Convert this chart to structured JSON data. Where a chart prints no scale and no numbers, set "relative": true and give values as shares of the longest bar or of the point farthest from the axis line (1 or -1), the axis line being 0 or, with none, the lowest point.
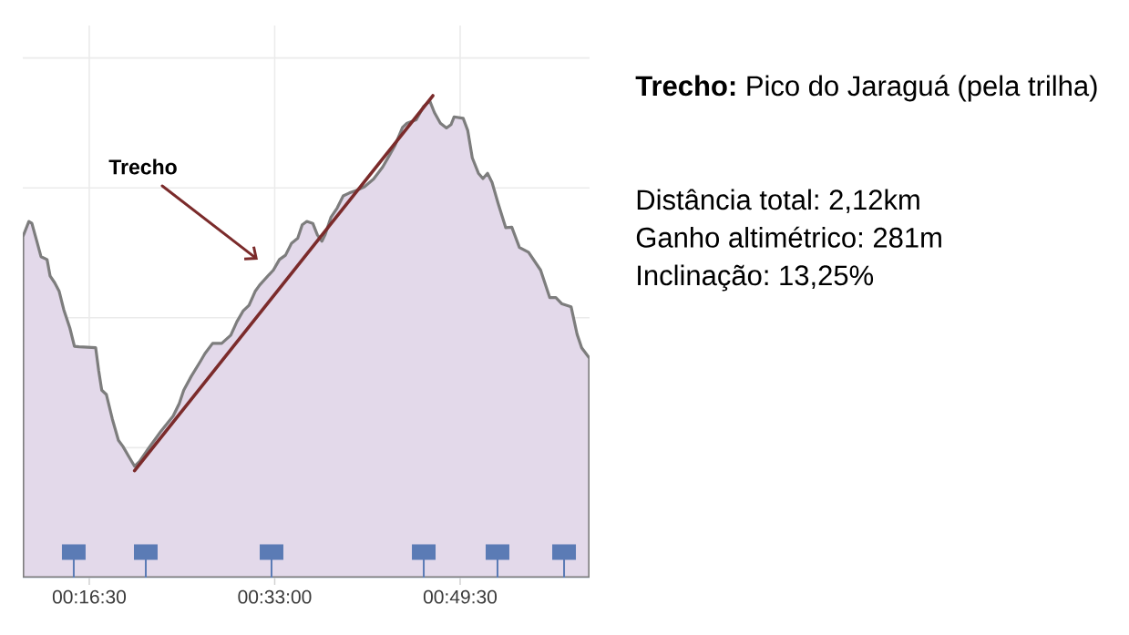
{
  "chart_data": {
    "type": "area",
    "title": "**Trecho:** Pico do Jaraguá (pela trilha)",
    "annotations": [
      "Trecho",
      "Distância total: 2,12km",
      "Ganho altimétrico: 281m",
      "Inclinação: 13,25%"
    ],
    "relative": true,
    "grid": true,
    "tick_labels": "x",
    "xlim": [
      0.1764,
      1.0169
    ],
    "xticks": [
      {
        "value": 0.275,
        "label": "00:16:30"
      },
      {
        "value": 0.55,
        "label": "00:33:00"
      },
      {
        "value": 0.825,
        "label": "00:49:30"
      }
    ],
    "series": [
      {
        "color": "#e3d9ea",
        "x": [
          0.1764,
          0.1854,
          0.1899,
          0.1966,
          0.2034,
          0.2124,
          0.2169,
          0.2236,
          0.2304,
          0.2372,
          0.2462,
          0.253,
          0.2597,
          0.2845,
          0.2889,
          0.2935,
          0.3003,
          0.3092,
          0.3182,
          0.325,
          0.3341,
          0.3422,
          0.3497,
          0.3633,
          0.3814,
          0.3993,
          0.4084,
          0.4151,
          0.4264,
          0.4399,
          0.4466,
          0.4579,
          0.4714,
          0.4849,
          0.4939,
          0.503,
          0.5119,
          0.521,
          0.5277,
          0.5412,
          0.548,
          0.557,
          0.566,
          0.575,
          0.5841,
          0.5908,
          0.5976,
          0.6065,
          0.6133,
          0.62,
          0.6246,
          0.6335,
          0.6426,
          0.6516,
          0.6606,
          0.6741,
          0.6831,
          0.6966,
          0.7102,
          0.7192,
          0.7281,
          0.7395,
          0.7462,
          0.7598,
          0.771,
          0.78,
          0.7868,
          0.7957,
          0.8047,
          0.8115,
          0.816,
          0.8295,
          0.8362,
          0.843,
          0.8521,
          0.8588,
          0.8656,
          0.8723,
          0.8814,
          0.8926,
          0.9016,
          0.9129,
          0.9264,
          0.9443,
          0.9579,
          0.9669,
          0.976,
          0.9895,
          0.9984,
          1.0052,
          1.0169
        ],
        "values": [
          0.707,
          0.739,
          0.735,
          0.701,
          0.666,
          0.66,
          0.626,
          0.612,
          0.594,
          0.556,
          0.518,
          0.48,
          0.479,
          0.477,
          0.43,
          0.389,
          0.38,
          0.329,
          0.285,
          0.272,
          0.25,
          0.231,
          0.241,
          0.269,
          0.304,
          0.335,
          0.361,
          0.389,
          0.418,
          0.449,
          0.465,
          0.486,
          0.486,
          0.503,
          0.531,
          0.553,
          0.565,
          0.594,
          0.607,
          0.628,
          0.638,
          0.66,
          0.669,
          0.694,
          0.704,
          0.732,
          0.739,
          0.735,
          0.711,
          0.698,
          0.711,
          0.748,
          0.767,
          0.792,
          0.798,
          0.805,
          0.811,
          0.827,
          0.852,
          0.874,
          0.896,
          0.934,
          0.943,
          0.95,
          0.978,
          0.989,
          0.965,
          0.943,
          0.933,
          0.94,
          0.956,
          0.953,
          0.928,
          0.871,
          0.839,
          0.828,
          0.839,
          0.82,
          0.776,
          0.726,
          0.727,
          0.685,
          0.675,
          0.638,
          0.581,
          0.581,
          0.568,
          0.562,
          0.505,
          0.477,
          0.455
        ]
      },
      {
        "type": "line",
        "color": "#7b2b2b",
        "x": [
          0.3422,
          0.7845
        ],
        "values": [
          0.222,
          1.0
        ]
      },
      {
        "type": "lollipop",
        "color": "#5b7bb5",
        "marker": "square",
        "x": [
          0.252,
          0.3588,
          0.5453,
          0.771,
          0.8804,
          0.9791
        ],
        "values": [
          0.053,
          0.053,
          0.053,
          0.053,
          0.053,
          0.053
        ]
      }
    ]
  }
}
